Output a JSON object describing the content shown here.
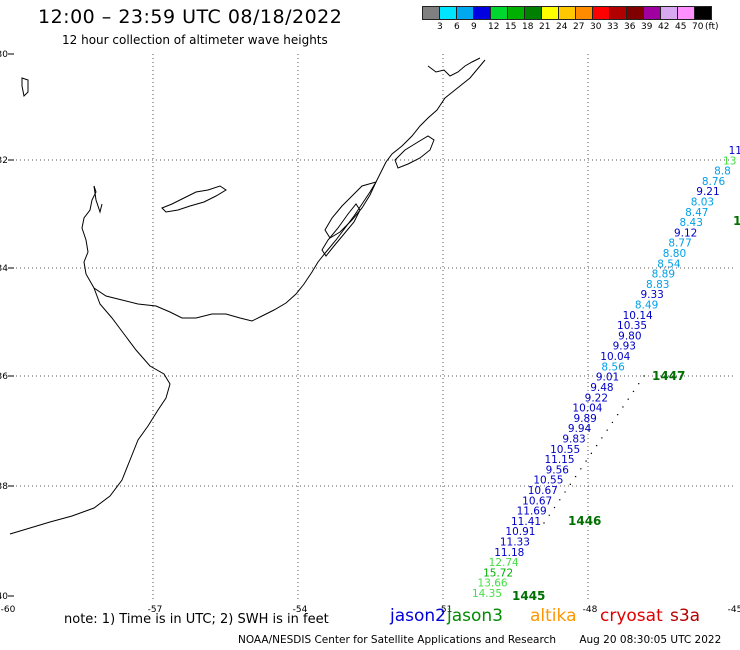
{
  "header": {
    "title": "12:00 – 23:59 UTC 08/18/2022",
    "subtitle": "12 hour collection of altimeter wave heights"
  },
  "legend": {
    "unit": "(ft)",
    "items": [
      {
        "label": "3",
        "color": "#808080"
      },
      {
        "label": "6",
        "color": "#00e5ff"
      },
      {
        "label": "9",
        "color": "#00a8f0"
      },
      {
        "label": "12",
        "color": "#0000e0"
      },
      {
        "label": "15",
        "color": "#00d830"
      },
      {
        "label": "18",
        "color": "#00b000"
      },
      {
        "label": "21",
        "color": "#008000"
      },
      {
        "label": "24",
        "color": "#ffff00"
      },
      {
        "label": "27",
        "color": "#ffc800"
      },
      {
        "label": "30",
        "color": "#ff8c00"
      },
      {
        "label": "33",
        "color": "#ff0000"
      },
      {
        "label": "36",
        "color": "#b00000"
      },
      {
        "label": "39",
        "color": "#800000"
      },
      {
        "label": "42",
        "color": "#a000a0"
      },
      {
        "label": "45",
        "color": "#d8a8f0"
      },
      {
        "label": "70",
        "color": "#ff90ff"
      },
      {
        "label": "",
        "color": "#000000"
      }
    ]
  },
  "axes": {
    "lat_labels": [
      "-30",
      "-32",
      "-34",
      "-36",
      "-38",
      "-40"
    ],
    "lon_labels": [
      "-60",
      "-57",
      "-54",
      "-51",
      "-48",
      "-45"
    ]
  },
  "passes": [
    {
      "time": "1447",
      "color": "#007000"
    },
    {
      "time": "1446",
      "color": "#007000"
    },
    {
      "time": "1445",
      "color": "#007000"
    },
    {
      "time": "1",
      "color": "#007000"
    }
  ],
  "measurements": [
    {
      "v": "11",
      "c": "#0000c8"
    },
    {
      "v": "13",
      "c": "#44e044"
    },
    {
      "v": "8.8",
      "c": "#00a0e8"
    },
    {
      "v": "8.76",
      "c": "#00a0e8"
    },
    {
      "v": "9.21",
      "c": "#0000c8"
    },
    {
      "v": "8.03",
      "c": "#00a0e8"
    },
    {
      "v": "8.47",
      "c": "#00a0e8"
    },
    {
      "v": "8.43",
      "c": "#00a0e8"
    },
    {
      "v": "9.12",
      "c": "#0000c8"
    },
    {
      "v": "8.77",
      "c": "#00a0e8"
    },
    {
      "v": "8.80",
      "c": "#00a0e8"
    },
    {
      "v": "8.54",
      "c": "#00a0e8"
    },
    {
      "v": "8.89",
      "c": "#00a0e8"
    },
    {
      "v": "8.83",
      "c": "#00a0e8"
    },
    {
      "v": "9.33",
      "c": "#0000c8"
    },
    {
      "v": "8.49",
      "c": "#00a0e8"
    },
    {
      "v": "10.14",
      "c": "#0000c8"
    },
    {
      "v": "10.35",
      "c": "#0000c8"
    },
    {
      "v": "9.80",
      "c": "#0000c8"
    },
    {
      "v": "9.93",
      "c": "#0000c8"
    },
    {
      "v": "10.04",
      "c": "#0000c8"
    },
    {
      "v": "8.56",
      "c": "#00a0e8"
    },
    {
      "v": "9.01",
      "c": "#0000c8"
    },
    {
      "v": "9.48",
      "c": "#0000c8"
    },
    {
      "v": "9.22",
      "c": "#0000c8"
    },
    {
      "v": "10.04",
      "c": "#0000c8"
    },
    {
      "v": "9.89",
      "c": "#0000c8"
    },
    {
      "v": "9.94",
      "c": "#0000c8"
    },
    {
      "v": "9.83",
      "c": "#0000c8"
    },
    {
      "v": "10.55",
      "c": "#0000c8"
    },
    {
      "v": "11.15",
      "c": "#0000c8"
    },
    {
      "v": "9.56",
      "c": "#0000c8"
    },
    {
      "v": "10.55",
      "c": "#0000c8"
    },
    {
      "v": "10.67",
      "c": "#0000c8"
    },
    {
      "v": "10.67",
      "c": "#0000c8"
    },
    {
      "v": "11.69",
      "c": "#0000c8"
    },
    {
      "v": "11.41",
      "c": "#0000c8"
    },
    {
      "v": "10.91",
      "c": "#0000c8"
    },
    {
      "v": "11.33",
      "c": "#0000c8"
    },
    {
      "v": "11.18",
      "c": "#0000c8"
    },
    {
      "v": "12.74",
      "c": "#44e044"
    },
    {
      "v": "15.72",
      "c": "#00b000"
    },
    {
      "v": "13.66",
      "c": "#44e044"
    },
    {
      "v": "14.35",
      "c": "#44e044"
    }
  ],
  "note": "note:  1) Time is in UTC; 2) SWH is in feet",
  "satellites": [
    {
      "name": "jason2",
      "color": "#0000dc"
    },
    {
      "name": "jason3",
      "color": "#008c00"
    },
    {
      "name": "altika",
      "color": "#ff9600"
    },
    {
      "name": "cryosat",
      "color": "#e00000"
    },
    {
      "name": "s3a",
      "color": "#b40000"
    }
  ],
  "footer": {
    "credit": "NOAA/NESDIS Center for Satellite Applications and Research",
    "timestamp": "Aug 20 08:30:05 UTC 2022"
  }
}
